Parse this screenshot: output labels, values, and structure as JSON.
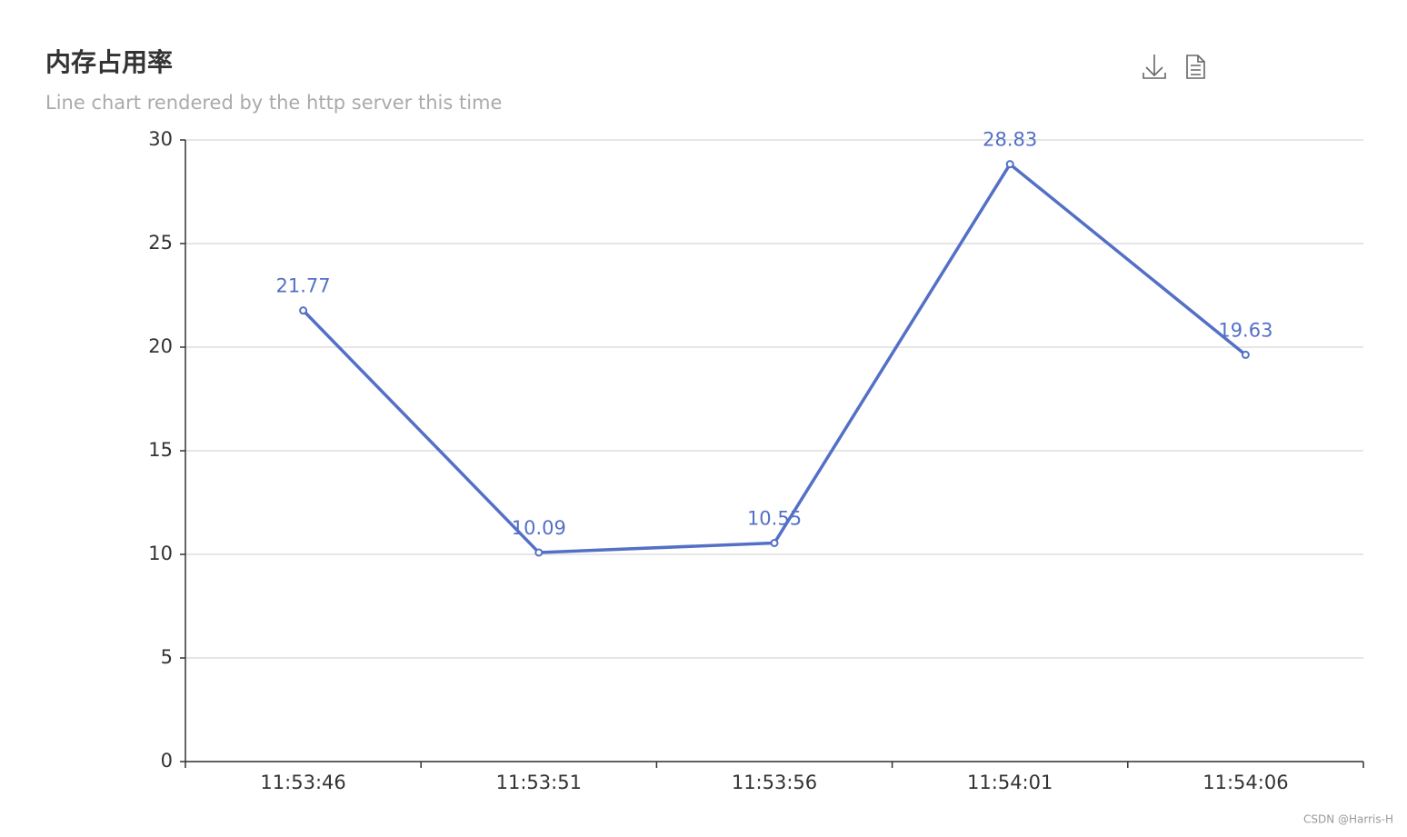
{
  "chart_data": {
    "type": "line",
    "title": "内存占用率",
    "subtitle": "Line chart rendered by the http server this time",
    "categories": [
      "11:53:46",
      "11:53:51",
      "11:53:56",
      "11:54:01",
      "11:54:06"
    ],
    "values": [
      21.77,
      10.09,
      10.55,
      28.83,
      19.63
    ],
    "color": "#5470c6",
    "ylim": [
      0,
      30
    ],
    "yticks": [
      0,
      5,
      10,
      15,
      20,
      25,
      30
    ],
    "grid": true
  },
  "watermark": "CSDN @Harris-H"
}
